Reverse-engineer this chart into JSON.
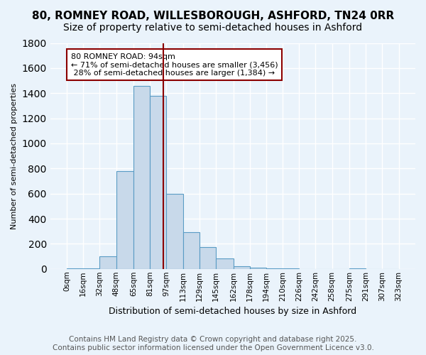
{
  "title_line1": "80, ROMNEY ROAD, WILLESBOROUGH, ASHFORD, TN24 0RR",
  "title_line2": "Size of property relative to semi-detached houses in Ashford",
  "xlabel": "Distribution of semi-detached houses by size in Ashford",
  "ylabel": "Number of semi-detached properties",
  "bin_labels": [
    "0sqm",
    "16sqm",
    "32sqm",
    "48sqm",
    "65sqm",
    "81sqm",
    "97sqm",
    "113sqm",
    "129sqm",
    "145sqm",
    "162sqm",
    "178sqm",
    "194sqm",
    "210sqm",
    "226sqm",
    "242sqm",
    "258sqm",
    "275sqm",
    "291sqm",
    "307sqm",
    "323sqm"
  ],
  "bin_edges": [
    0,
    16,
    32,
    48,
    65,
    81,
    97,
    113,
    129,
    145,
    162,
    178,
    194,
    210,
    226,
    242,
    258,
    275,
    291,
    307,
    323
  ],
  "bar_heights": [
    5,
    5,
    100,
    780,
    1460,
    1380,
    600,
    295,
    175,
    85,
    20,
    10,
    5,
    2,
    0,
    0,
    0,
    5,
    0,
    0
  ],
  "bar_color": "#c8d9ea",
  "bar_edgecolor": "#5a9cc5",
  "property_size": 94,
  "vline_color": "#8b0000",
  "annotation_text": "80 ROMNEY ROAD: 94sqm\n← 71% of semi-detached houses are smaller (3,456)\n 28% of semi-detached houses are larger (1,384) →",
  "annotation_box_color": "#ffffff",
  "annotation_border_color": "#8b0000",
  "ylim": [
    0,
    1800
  ],
  "yticks": [
    0,
    200,
    400,
    600,
    800,
    1000,
    1200,
    1400,
    1600,
    1800
  ],
  "footer_text": "Contains HM Land Registry data © Crown copyright and database right 2025.\nContains public sector information licensed under the Open Government Licence v3.0.",
  "bg_color": "#eaf3fb",
  "plot_bg_color": "#eaf3fb",
  "grid_color": "#ffffff",
  "title_fontsize": 11,
  "subtitle_fontsize": 10,
  "annotation_fontsize": 8,
  "footer_fontsize": 7.5
}
